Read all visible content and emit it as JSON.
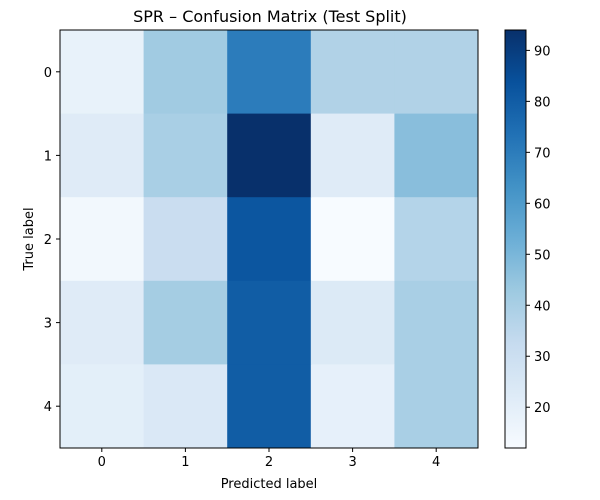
{
  "chart_data": {
    "type": "heatmap",
    "title": "SPR – Confusion Matrix (Test Split)",
    "xlabel": "Predicted label",
    "ylabel": "True label",
    "x_categories": [
      "0",
      "1",
      "2",
      "3",
      "4"
    ],
    "y_categories": [
      "0",
      "1",
      "2",
      "3",
      "4"
    ],
    "values": [
      [
        18,
        42,
        70,
        38,
        38
      ],
      [
        22,
        40,
        94,
        22,
        47
      ],
      [
        14,
        31,
        82,
        12,
        37
      ],
      [
        22,
        41,
        80,
        23,
        40
      ],
      [
        20,
        24,
        80,
        19,
        40
      ]
    ],
    "colorscale": "Blues",
    "colorbar": {
      "min": 12,
      "max": 94,
      "ticks": [
        "20",
        "30",
        "40",
        "50",
        "60",
        "70",
        "80",
        "90"
      ]
    },
    "grid": false
  }
}
